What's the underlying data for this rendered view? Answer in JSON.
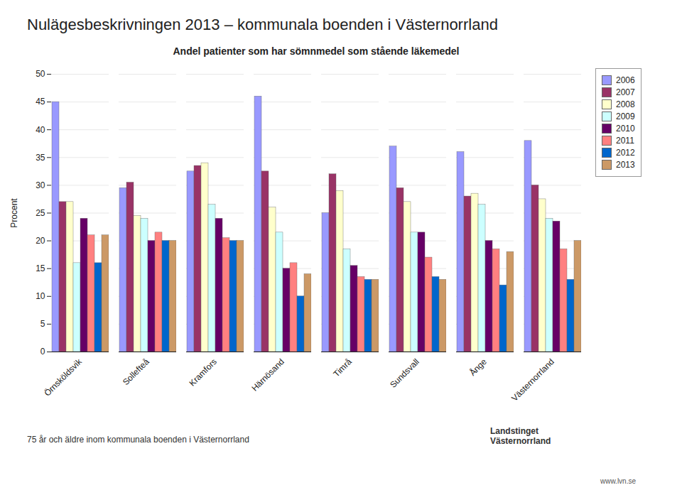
{
  "chart_data": {
    "type": "bar",
    "title": "Nulägesbeskrivningen 2013 – kommunala boenden i Västernorrland",
    "subtitle": "Andel patienter som har sömnmedel som stående läkemedel",
    "ylabel": "Procent",
    "annotations": [
      "75 år och äldre inom kommunala boenden i Västernorrland",
      "Landstinget\nVästernorrland",
      "www.lvn.se"
    ],
    "categories": [
      "Örnsköldsvik",
      "Sollefteå",
      "Kramfors",
      "Härnösand",
      "Timrå",
      "Sundsvall",
      "Ånge",
      "Västernorrland"
    ],
    "series": [
      {
        "name": "2006",
        "color": "#9999FF",
        "values": [
          45,
          29.5,
          32.5,
          46,
          25,
          37,
          36,
          38
        ]
      },
      {
        "name": "2007",
        "color": "#993366",
        "values": [
          27,
          30.5,
          33.5,
          32.5,
          32,
          29.5,
          28,
          30
        ]
      },
      {
        "name": "2008",
        "color": "#FFFFCC",
        "values": [
          27,
          24.5,
          34,
          26,
          29,
          27,
          28.5,
          27.5
        ]
      },
      {
        "name": "2009",
        "color": "#CCFFFF",
        "values": [
          16,
          24,
          26.5,
          21.5,
          18.5,
          21.5,
          26.5,
          24
        ]
      },
      {
        "name": "2010",
        "color": "#660066",
        "values": [
          24,
          20,
          24,
          15,
          15.5,
          21.5,
          20,
          23.5
        ]
      },
      {
        "name": "2011",
        "color": "#FF8080",
        "values": [
          21,
          21.5,
          20.5,
          16,
          13.5,
          17,
          18.5,
          18.5
        ]
      },
      {
        "name": "2012",
        "color": "#0066CC",
        "values": [
          16,
          20,
          20,
          10,
          13,
          13.5,
          12,
          13
        ]
      },
      {
        "name": "2013",
        "color": "#CC9966",
        "values": [
          21,
          20,
          20,
          14,
          13,
          13,
          18,
          20
        ]
      }
    ],
    "ylim": [
      0,
      50
    ],
    "yticks": [
      0,
      5,
      10,
      15,
      20,
      25,
      30,
      35,
      40,
      45,
      50
    ],
    "grid": true,
    "legend": "right"
  }
}
